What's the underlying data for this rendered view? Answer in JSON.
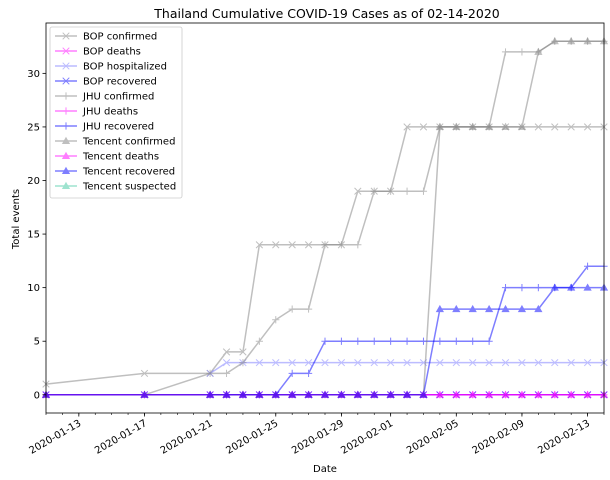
{
  "chart_data": {
    "type": "line",
    "title": "Thailand Cumulative COVID-19 Cases as of 02-14-2020",
    "xlabel": "Date",
    "ylabel": "Total events",
    "x_type": "date",
    "xlim": [
      "2020-01-11",
      "2020-02-14"
    ],
    "ylim": [
      -1.7,
      34.7
    ],
    "x_ticks": [
      "2020-01-13",
      "2020-01-17",
      "2020-01-21",
      "2020-01-25",
      "2020-01-29",
      "2020-02-01",
      "2020-02-05",
      "2020-02-09",
      "2020-02-13"
    ],
    "y_ticks": [
      0,
      5,
      10,
      15,
      20,
      25,
      30
    ],
    "grid": false,
    "legend": "upper-left",
    "series": [
      {
        "name": "BOP confirmed",
        "marker": "x",
        "color": "#808080",
        "x": [
          "2020-01-11",
          "2020-01-17",
          "2020-01-21",
          "2020-01-22",
          "2020-01-23",
          "2020-01-24",
          "2020-01-25",
          "2020-01-26",
          "2020-01-27",
          "2020-01-28",
          "2020-01-29",
          "2020-01-30",
          "2020-01-31",
          "2020-02-01",
          "2020-02-02",
          "2020-02-03",
          "2020-02-04",
          "2020-02-05",
          "2020-02-06",
          "2020-02-07",
          "2020-02-08",
          "2020-02-09",
          "2020-02-10",
          "2020-02-11",
          "2020-02-12",
          "2020-02-13",
          "2020-02-14"
        ],
        "y": [
          1,
          2,
          2,
          4,
          4,
          14,
          14,
          14,
          14,
          14,
          14,
          19,
          19,
          19,
          25,
          25,
          25,
          25,
          25,
          25,
          25,
          25,
          25,
          25,
          25,
          25,
          25
        ]
      },
      {
        "name": "BOP deaths",
        "marker": "x",
        "color": "#ff00ff",
        "x": [
          "2020-01-11",
          "2020-01-17",
          "2020-01-21",
          "2020-01-22",
          "2020-01-23",
          "2020-01-24",
          "2020-01-25",
          "2020-01-26",
          "2020-01-27",
          "2020-01-28",
          "2020-01-29",
          "2020-01-30",
          "2020-01-31",
          "2020-02-01",
          "2020-02-02",
          "2020-02-03",
          "2020-02-04",
          "2020-02-05",
          "2020-02-06",
          "2020-02-07",
          "2020-02-08",
          "2020-02-09",
          "2020-02-10",
          "2020-02-11",
          "2020-02-12",
          "2020-02-13",
          "2020-02-14"
        ],
        "y": [
          0,
          0,
          0,
          0,
          0,
          0,
          0,
          0,
          0,
          0,
          0,
          0,
          0,
          0,
          0,
          0,
          0,
          0,
          0,
          0,
          0,
          0,
          0,
          0,
          0,
          0,
          0
        ]
      },
      {
        "name": "BOP hospitalized",
        "marker": "x",
        "color": "#7b7bff",
        "x": [
          "2020-01-21",
          "2020-01-22",
          "2020-01-23",
          "2020-01-24",
          "2020-01-25",
          "2020-01-26",
          "2020-01-27",
          "2020-01-28",
          "2020-01-29",
          "2020-01-30",
          "2020-01-31",
          "2020-02-01",
          "2020-02-02",
          "2020-02-03",
          "2020-02-04",
          "2020-02-05",
          "2020-02-06",
          "2020-02-07",
          "2020-02-08",
          "2020-02-09",
          "2020-02-10",
          "2020-02-11",
          "2020-02-12",
          "2020-02-13",
          "2020-02-14"
        ],
        "y": [
          2,
          3,
          3,
          3,
          3,
          3,
          3,
          3,
          3,
          3,
          3,
          3,
          3,
          3,
          3,
          3,
          3,
          3,
          3,
          3,
          3,
          3,
          3,
          3,
          3
        ]
      },
      {
        "name": "BOP recovered",
        "marker": "x",
        "color": "#0000ff",
        "x": [
          "2020-01-11",
          "2020-01-17",
          "2020-01-21",
          "2020-01-22",
          "2020-01-23",
          "2020-01-24",
          "2020-01-25",
          "2020-01-26",
          "2020-01-27",
          "2020-01-28",
          "2020-01-29",
          "2020-01-30",
          "2020-01-31",
          "2020-02-01",
          "2020-02-02",
          "2020-02-03",
          "2020-02-04",
          "2020-02-05",
          "2020-02-06",
          "2020-02-07",
          "2020-02-08",
          "2020-02-09",
          "2020-02-10",
          "2020-02-11",
          "2020-02-12",
          "2020-02-13",
          "2020-02-14"
        ],
        "y": [
          0,
          0,
          0,
          0,
          0,
          0,
          0,
          0,
          0,
          0,
          0,
          0,
          0,
          0,
          0,
          0,
          0,
          0,
          0,
          0,
          0,
          0,
          0,
          0,
          0,
          0,
          0
        ]
      },
      {
        "name": "JHU confirmed",
        "marker": "+",
        "color": "#808080",
        "x": [
          "2020-01-17",
          "2020-01-21",
          "2020-01-22",
          "2020-01-23",
          "2020-01-24",
          "2020-01-25",
          "2020-01-26",
          "2020-01-27",
          "2020-01-28",
          "2020-01-29",
          "2020-01-30",
          "2020-01-31",
          "2020-02-01",
          "2020-02-02",
          "2020-02-03",
          "2020-02-04",
          "2020-02-05",
          "2020-02-06",
          "2020-02-07",
          "2020-02-08",
          "2020-02-09",
          "2020-02-10",
          "2020-02-11",
          "2020-02-12",
          "2020-02-13",
          "2020-02-14"
        ],
        "y": [
          0,
          2,
          2,
          3,
          5,
          7,
          8,
          8,
          14,
          14,
          14,
          19,
          19,
          19,
          19,
          25,
          25,
          25,
          25,
          32,
          32,
          32,
          33,
          33,
          33,
          33
        ]
      },
      {
        "name": "JHU deaths",
        "marker": "+",
        "color": "#ff00ff",
        "x": [
          "2020-01-11",
          "2020-01-17",
          "2020-01-21",
          "2020-01-22",
          "2020-01-23",
          "2020-01-24",
          "2020-01-25",
          "2020-01-26",
          "2020-01-27",
          "2020-01-28",
          "2020-01-29",
          "2020-01-30",
          "2020-01-31",
          "2020-02-01",
          "2020-02-02",
          "2020-02-03",
          "2020-02-04",
          "2020-02-05",
          "2020-02-06",
          "2020-02-07",
          "2020-02-08",
          "2020-02-09",
          "2020-02-10",
          "2020-02-11",
          "2020-02-12",
          "2020-02-13",
          "2020-02-14"
        ],
        "y": [
          0,
          0,
          0,
          0,
          0,
          0,
          0,
          0,
          0,
          0,
          0,
          0,
          0,
          0,
          0,
          0,
          0,
          0,
          0,
          0,
          0,
          0,
          0,
          0,
          0,
          0,
          0
        ]
      },
      {
        "name": "JHU recovered",
        "marker": "+",
        "color": "#0000ff",
        "x": [
          "2020-01-21",
          "2020-01-22",
          "2020-01-23",
          "2020-01-24",
          "2020-01-25",
          "2020-01-26",
          "2020-01-27",
          "2020-01-28",
          "2020-01-29",
          "2020-01-30",
          "2020-01-31",
          "2020-02-01",
          "2020-02-02",
          "2020-02-03",
          "2020-02-04",
          "2020-02-05",
          "2020-02-06",
          "2020-02-07",
          "2020-02-08",
          "2020-02-09",
          "2020-02-10",
          "2020-02-11",
          "2020-02-12",
          "2020-02-13",
          "2020-02-14"
        ],
        "y": [
          0,
          0,
          0,
          0,
          0,
          2,
          2,
          5,
          5,
          5,
          5,
          5,
          5,
          5,
          5,
          5,
          5,
          5,
          10,
          10,
          10,
          10,
          10,
          12,
          12
        ]
      },
      {
        "name": "Tencent confirmed",
        "marker": "^",
        "color": "#808080",
        "x": [
          "2020-01-11",
          "2020-01-17",
          "2020-01-21",
          "2020-01-22",
          "2020-01-23",
          "2020-01-24",
          "2020-01-25",
          "2020-01-26",
          "2020-01-27",
          "2020-01-28",
          "2020-01-29",
          "2020-01-30",
          "2020-01-31",
          "2020-02-01",
          "2020-02-02",
          "2020-02-03",
          "2020-02-04",
          "2020-02-05",
          "2020-02-06",
          "2020-02-07",
          "2020-02-08",
          "2020-02-09",
          "2020-02-10",
          "2020-02-11",
          "2020-02-12",
          "2020-02-13",
          "2020-02-14"
        ],
        "y": [
          0,
          0,
          0,
          0,
          0,
          0,
          0,
          0,
          0,
          0,
          0,
          0,
          0,
          0,
          0,
          0,
          25,
          25,
          25,
          25,
          25,
          25,
          32,
          33,
          33,
          33,
          33
        ]
      },
      {
        "name": "Tencent deaths",
        "marker": "^",
        "color": "#ff00ff",
        "x": [
          "2020-01-11",
          "2020-01-17",
          "2020-01-21",
          "2020-01-22",
          "2020-01-23",
          "2020-01-24",
          "2020-01-25",
          "2020-01-26",
          "2020-01-27",
          "2020-01-28",
          "2020-01-29",
          "2020-01-30",
          "2020-01-31",
          "2020-02-01",
          "2020-02-02",
          "2020-02-03",
          "2020-02-04",
          "2020-02-05",
          "2020-02-06",
          "2020-02-07",
          "2020-02-08",
          "2020-02-09",
          "2020-02-10",
          "2020-02-11",
          "2020-02-12",
          "2020-02-13",
          "2020-02-14"
        ],
        "y": [
          0,
          0,
          0,
          0,
          0,
          0,
          0,
          0,
          0,
          0,
          0,
          0,
          0,
          0,
          0,
          0,
          0,
          0,
          0,
          0,
          0,
          0,
          0,
          0,
          0,
          0,
          0
        ]
      },
      {
        "name": "Tencent recovered",
        "marker": "^",
        "color": "#0000ff",
        "x": [
          "2020-01-11",
          "2020-01-17",
          "2020-01-21",
          "2020-01-22",
          "2020-01-23",
          "2020-01-24",
          "2020-01-25",
          "2020-01-26",
          "2020-01-27",
          "2020-01-28",
          "2020-01-29",
          "2020-01-30",
          "2020-01-31",
          "2020-02-01",
          "2020-02-02",
          "2020-02-03",
          "2020-02-04",
          "2020-02-05",
          "2020-02-06",
          "2020-02-07",
          "2020-02-08",
          "2020-02-09",
          "2020-02-10",
          "2020-02-11",
          "2020-02-12",
          "2020-02-13",
          "2020-02-14"
        ],
        "y": [
          0,
          0,
          0,
          0,
          0,
          0,
          0,
          0,
          0,
          0,
          0,
          0,
          0,
          0,
          0,
          0,
          8,
          8,
          8,
          8,
          8,
          8,
          8,
          10,
          10,
          10,
          10
        ]
      },
      {
        "name": "Tencent suspected",
        "marker": "^",
        "color": "#40c8a0",
        "x": [],
        "y": []
      }
    ]
  }
}
